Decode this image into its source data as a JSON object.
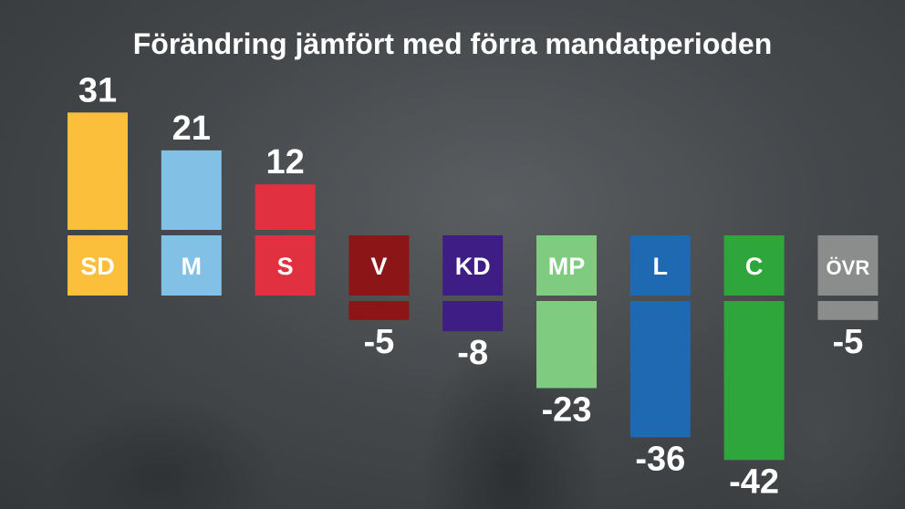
{
  "title": "Förändring jämfört med förra mandatperioden",
  "chart_data": {
    "type": "bar",
    "title": "Förändring jämfört med förra mandatperioden",
    "categories": [
      "SD",
      "M",
      "S",
      "V",
      "KD",
      "MP",
      "L",
      "C",
      "ÖVR"
    ],
    "values": [
      31,
      21,
      12,
      -5,
      -8,
      -23,
      -36,
      -42,
      -5
    ],
    "value_labels": [
      "31",
      "21",
      "12",
      "-5",
      "-8",
      "-23",
      "-36",
      "-42",
      "-5"
    ],
    "colors": [
      "#fcbf3c",
      "#82c0e6",
      "#e1303f",
      "#8c1518",
      "#3e1d85",
      "#7fcb80",
      "#1f68b2",
      "#2ea63c",
      "#8b8c8c"
    ],
    "xlabel": "",
    "ylabel": ""
  }
}
